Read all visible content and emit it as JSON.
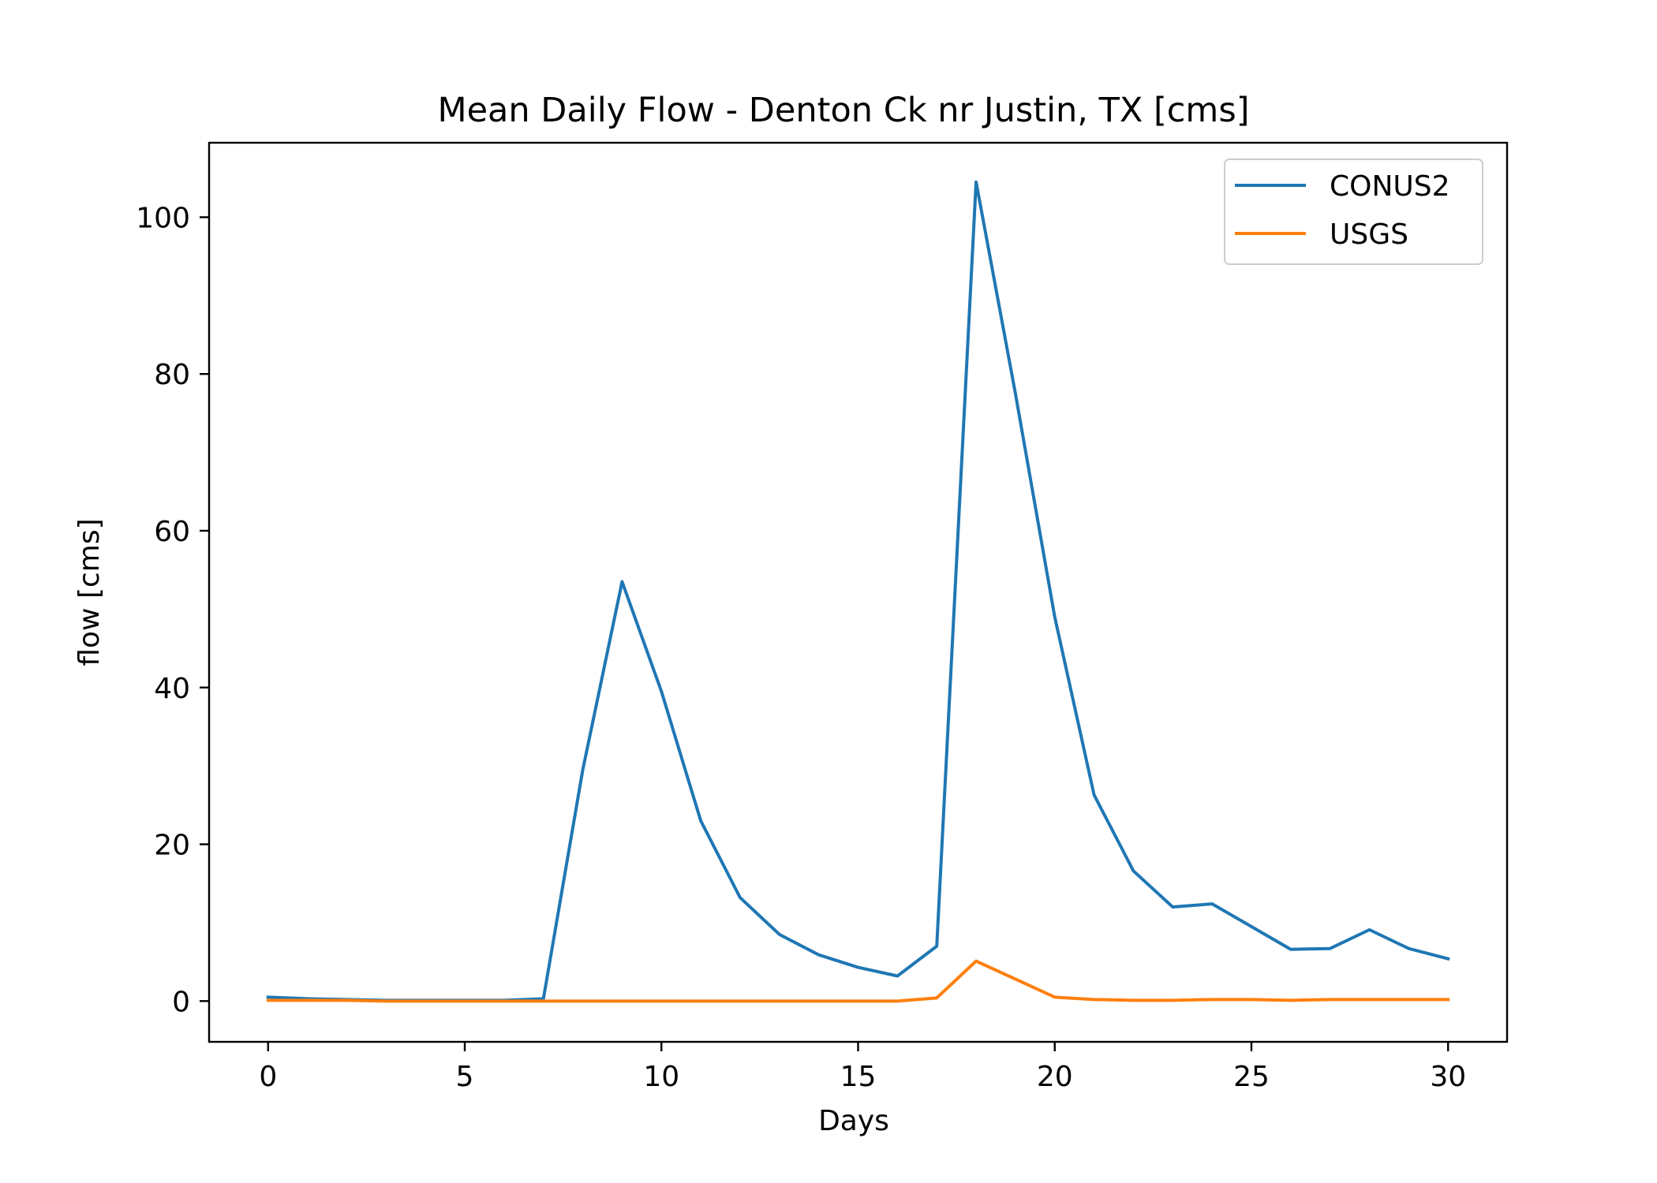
{
  "chart_data": {
    "type": "line",
    "title": "Mean Daily Flow - Denton Ck nr Justin, TX [cms]",
    "xlabel": "Days",
    "ylabel": "flow [cms]",
    "xlim": [
      -1.5,
      31.5
    ],
    "ylim": [
      -5.2,
      109.5
    ],
    "xticks": [
      0,
      5,
      10,
      15,
      20,
      25,
      30
    ],
    "yticks": [
      0,
      20,
      40,
      60,
      80,
      100
    ],
    "grid": false,
    "legend_position": "top-right",
    "x": [
      0,
      1,
      2,
      3,
      4,
      5,
      6,
      7,
      8,
      9,
      10,
      11,
      12,
      13,
      14,
      15,
      16,
      17,
      18,
      19,
      20,
      21,
      22,
      23,
      24,
      25,
      26,
      27,
      28,
      29,
      30
    ],
    "series": [
      {
        "name": "CONUS2",
        "color": "#1f77b4",
        "values": [
          0.5,
          0.3,
          0.2,
          0.1,
          0.1,
          0.1,
          0.1,
          0.3,
          29.5,
          53.5,
          39.5,
          23.0,
          13.2,
          8.5,
          5.9,
          4.3,
          3.2,
          7.0,
          104.5,
          77.5,
          49.0,
          26.3,
          16.6,
          12.0,
          12.4,
          9.5,
          6.6,
          6.7,
          9.1,
          6.7,
          5.4
        ]
      },
      {
        "name": "USGS",
        "color": "#ff7f0e",
        "values": [
          0.1,
          0.1,
          0.1,
          0.0,
          0.0,
          0.0,
          0.0,
          0.0,
          0.0,
          0.0,
          0.0,
          0.0,
          0.0,
          0.0,
          0.0,
          0.0,
          0.0,
          0.4,
          5.1,
          2.8,
          0.5,
          0.2,
          0.1,
          0.1,
          0.2,
          0.2,
          0.1,
          0.2,
          0.2,
          0.2,
          0.2
        ]
      }
    ]
  }
}
